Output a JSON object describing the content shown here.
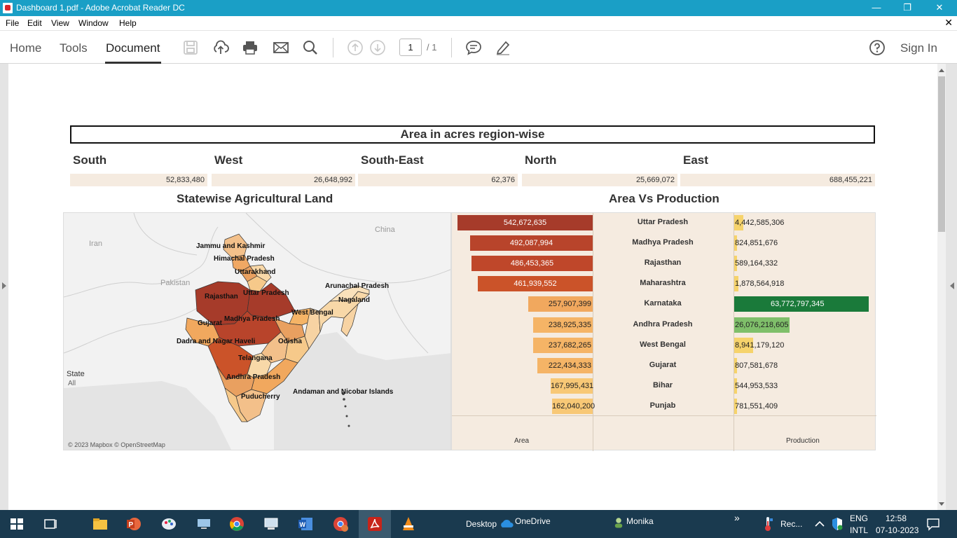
{
  "window": {
    "title": "Dashboard 1.pdf - Adobe Acrobat Reader DC",
    "minimize": "—",
    "restore": "❐",
    "close": "✕"
  },
  "menu": {
    "items": [
      "File",
      "Edit",
      "View",
      "Window",
      "Help"
    ],
    "close_doc": "✕"
  },
  "toolbar": {
    "tabs": {
      "home": "Home",
      "tools": "Tools",
      "document": "Document"
    },
    "page_current": "1",
    "page_total": "/ 1",
    "sign_in": "Sign In"
  },
  "dashboard": {
    "title": "Area in acres region-wise",
    "regions": [
      {
        "name": "South",
        "value": "52,833,480"
      },
      {
        "name": "West",
        "value": "26,648,992"
      },
      {
        "name": "South-East",
        "value": "62,376"
      },
      {
        "name": "North",
        "value": "25,669,072"
      },
      {
        "name": "East",
        "value": "688,455,221"
      }
    ],
    "map_title": "Statewise Agricultural Land",
    "avp_title": "Area Vs Production",
    "map": {
      "legend_title": "State",
      "legend_value": "All",
      "copyright": "© 2023 Mapbox © OpenStreetMap",
      "countries": {
        "china": "China",
        "iran": "Iran",
        "pakistan": "Pakistan"
      },
      "labels": {
        "jk": "Jammu and Kashmir",
        "hp": "Himachal Pradesh",
        "uk": "Uttarakhand",
        "rj": "Rajasthan",
        "up": "Uttar Pradesh",
        "ap_ar": "Arunachal Pradesh",
        "ng": "Nagaland",
        "wb": "West Bengal",
        "gj": "Gujarat",
        "mp": "Madhya Pradesh",
        "dnh": "Dadra and Nagar Haveli",
        "od": "Odisha",
        "tg": "Telangana",
        "ap": "Andhra Pradesh",
        "py": "Puducherry",
        "an": "Andaman and Nicobar Islands"
      }
    },
    "avp": {
      "area_axis": "Area",
      "production_axis": "Production"
    }
  },
  "chart_data": {
    "type": "bar",
    "title": "Area Vs Production",
    "categories": [
      "Uttar Pradesh",
      "Madhya Pradesh",
      "Rajasthan",
      "Maharashtra",
      "Karnataka",
      "Andhra Pradesh",
      "West Bengal",
      "Gujarat",
      "Bihar",
      "Punjab"
    ],
    "series": [
      {
        "name": "Area",
        "values": [
          542672635,
          492087994,
          486453365,
          461939552,
          257907399,
          238925335,
          237682265,
          222434333,
          167995431,
          162040200
        ],
        "labels": [
          "542,672,635",
          "492,087,994",
          "486,453,365",
          "461,939,552",
          "257,907,399",
          "238,925,335",
          "237,682,265",
          "222,434,333",
          "167,995,431",
          "162,040,200"
        ],
        "colors": [
          "#a63b2a",
          "#b8442b",
          "#bf472a",
          "#cb5329",
          "#f1a85e",
          "#f5b466",
          "#f5b466",
          "#f5b466",
          "#f8c876",
          "#f8c876"
        ]
      },
      {
        "name": "Production",
        "values": [
          4442585306,
          824851676,
          589164332,
          1878564918,
          63772797345,
          26076218605,
          8941179120,
          807581678,
          544953533,
          781551409
        ],
        "labels": [
          "4,442,585,306",
          "824,851,676",
          "589,164,332",
          "1,878,564,918",
          "63,772,797,345",
          "26,076,218,605",
          "8,941,179,120",
          "807,581,678",
          "544,953,533",
          "781,551,409"
        ],
        "colors": [
          "#f6d36b",
          "#f6d36b",
          "#f6d36b",
          "#f6d36b",
          "#1a7a3a",
          "#7fbf6a",
          "#f6d36b",
          "#f6d36b",
          "#f6d36b",
          "#f6d36b"
        ]
      }
    ],
    "xlabel": "Area",
    "ylabel": "Production"
  },
  "taskbar": {
    "desktop": "Desktop",
    "onedrive": "OneDrive",
    "user": "Monika",
    "chevron": "»",
    "weather": "Rec...",
    "lang_top": "ENG",
    "lang_bottom": "INTL",
    "time": "12:58",
    "date": "07-10-2023"
  }
}
